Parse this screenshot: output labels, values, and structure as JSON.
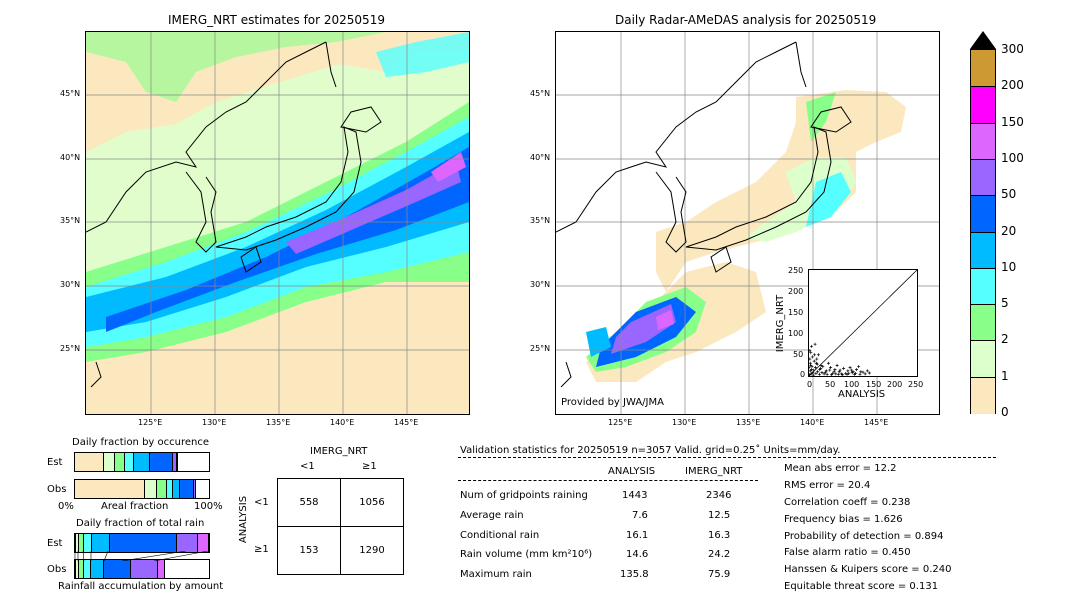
{
  "left_map": {
    "title": "IMERG_NRT estimates for 20250519",
    "lat_labels": [
      "45°N",
      "40°N",
      "35°N",
      "30°N",
      "25°N"
    ],
    "lon_labels": [
      "125°E",
      "130°E",
      "135°E",
      "140°E",
      "145°E"
    ]
  },
  "right_map": {
    "title": "Daily Radar-AMeDAS analysis for 20250519",
    "lat_labels": [
      "45°N",
      "40°N",
      "35°N",
      "30°N",
      "25°N"
    ],
    "lon_labels": [
      "125°E",
      "130°E",
      "135°E",
      "140°E",
      "145°E"
    ],
    "credit": "Provided by JWA/JMA"
  },
  "colorbar": {
    "labels": [
      "300",
      "200",
      "150",
      "100",
      "50",
      "20",
      "10",
      "5",
      "2",
      "1",
      "0"
    ],
    "colors": [
      "#cc9933",
      "#ff00ff",
      "#dd66ff",
      "#9966ff",
      "#0066ff",
      "#00bbff",
      "#55ffff",
      "#88ff88",
      "#ddffcc",
      "#fbe8bf"
    ]
  },
  "chart_data": [
    {
      "type": "scatter",
      "xlabel": "ANALYSIS",
      "ylabel": "IMERG_NRT",
      "xlim": [
        0,
        250
      ],
      "ylim": [
        0,
        250
      ],
      "xticks": [
        "0",
        "50",
        "100",
        "150",
        "200",
        "250"
      ],
      "yticks": [
        "0",
        "50",
        "100",
        "150",
        "200",
        "250"
      ],
      "points": [
        [
          5,
          5
        ],
        [
          10,
          2
        ],
        [
          15,
          20
        ],
        [
          20,
          10
        ],
        [
          3,
          30
        ],
        [
          8,
          45
        ],
        [
          2,
          60
        ],
        [
          12,
          35
        ],
        [
          25,
          15
        ],
        [
          30,
          8
        ],
        [
          40,
          12
        ],
        [
          50,
          20
        ],
        [
          60,
          15
        ],
        [
          70,
          10
        ],
        [
          80,
          18
        ],
        [
          90,
          12
        ],
        [
          100,
          8
        ],
        [
          110,
          15
        ],
        [
          120,
          10
        ],
        [
          130,
          5
        ],
        [
          135,
          12
        ],
        [
          6,
          70
        ],
        [
          4,
          55
        ],
        [
          18,
          40
        ],
        [
          28,
          25
        ],
        [
          35,
          5
        ],
        [
          45,
          30
        ],
        [
          55,
          6
        ],
        [
          65,
          25
        ],
        [
          75,
          5
        ],
        [
          85,
          6
        ],
        [
          95,
          20
        ],
        [
          105,
          4
        ],
        [
          115,
          22
        ],
        [
          14,
          75
        ],
        [
          22,
          50
        ],
        [
          1,
          3
        ],
        [
          3,
          12
        ],
        [
          7,
          22
        ],
        [
          9,
          8
        ],
        [
          11,
          14
        ],
        [
          16,
          6
        ],
        [
          19,
          28
        ],
        [
          24,
          4
        ],
        [
          27,
          18
        ],
        [
          32,
          22
        ],
        [
          38,
          9
        ],
        [
          42,
          4
        ],
        [
          48,
          14
        ],
        [
          52,
          3
        ],
        [
          58,
          10
        ],
        [
          62,
          5
        ],
        [
          68,
          4
        ],
        [
          72,
          14
        ],
        [
          78,
          3
        ],
        [
          88,
          4
        ],
        [
          92,
          6
        ],
        [
          98,
          14
        ],
        [
          102,
          10
        ],
        [
          108,
          6
        ],
        [
          118,
          4
        ],
        [
          125,
          9
        ],
        [
          140,
          7
        ],
        [
          0,
          20
        ],
        [
          2,
          40
        ],
        [
          4,
          25
        ],
        [
          6,
          15
        ],
        [
          13,
          50
        ],
        [
          17,
          30
        ]
      ]
    },
    {
      "type": "bar",
      "title": "Daily fraction by occurence",
      "series": [
        {
          "name": "Est",
          "values": [
            0.22,
            0.08,
            0.07,
            0.07,
            0.12,
            0.17,
            0.03,
            0.01
          ],
          "colors": [
            "#fbe8bf",
            "#ddffcc",
            "#88ff88",
            "#55ffff",
            "#00bbff",
            "#0066ff",
            "#9966ff",
            "#dd66ff"
          ]
        },
        {
          "name": "Obs",
          "values": [
            0.52,
            0.09,
            0.08,
            0.04,
            0.05,
            0.11,
            0.01
          ],
          "colors": [
            "#fbe8bf",
            "#ddffcc",
            "#88ff88",
            "#55ffff",
            "#00bbff",
            "#0066ff",
            "#9966ff"
          ]
        }
      ],
      "xlabel": "Areal fraction",
      "x_left": "0%",
      "x_right": "100%"
    },
    {
      "type": "bar",
      "title": "Daily fraction of total rain",
      "series": [
        {
          "name": "Est",
          "values": [
            0.01,
            0.02,
            0.04,
            0.06,
            0.13,
            0.5,
            0.16,
            0.08
          ],
          "colors": [
            "#fbe8bf",
            "#ddffcc",
            "#88ff88",
            "#55ffff",
            "#00bbff",
            "#0066ff",
            "#9966ff",
            "#dd66ff"
          ]
        },
        {
          "name": "Obs",
          "values": [
            0.01,
            0.02,
            0.04,
            0.05,
            0.1,
            0.2,
            0.2,
            0.05
          ],
          "colors": [
            "#fbe8bf",
            "#ddffcc",
            "#88ff88",
            "#55ffff",
            "#00bbff",
            "#0066ff",
            "#9966ff",
            "#dd66ff"
          ]
        }
      ],
      "xlabel": "Rainfall accumulation by amount"
    },
    {
      "type": "table",
      "title": "IMERG_NRT",
      "ylabel": "ANALYSIS",
      "col_headers": [
        "<1",
        "≥1"
      ],
      "row_headers": [
        "<1",
        "≥1"
      ],
      "cells": [
        [
          "558",
          "1056"
        ],
        [
          "153",
          "1290"
        ]
      ]
    }
  ],
  "validation": {
    "header": "Validation statistics for 20250519  n=3057 Valid. grid=0.25˚ Units=mm/day.",
    "col_analysis": "ANALYSIS",
    "col_imerg": "IMERG_NRT",
    "rows": [
      {
        "label": "Num of gridpoints raining",
        "analysis": "1443",
        "imerg": "2346"
      },
      {
        "label": "Average rain",
        "analysis": "7.6",
        "imerg": "12.5"
      },
      {
        "label": "Conditional rain",
        "analysis": "16.1",
        "imerg": "16.3"
      },
      {
        "label": "Rain volume (mm km²10⁶)",
        "analysis": "14.6",
        "imerg": "24.2"
      },
      {
        "label": "Maximum rain",
        "analysis": "135.8",
        "imerg": "75.9"
      }
    ],
    "scores": [
      "Mean abs error =   12.2",
      "RMS error =   20.4",
      "Correlation coeff =  0.238",
      "Frequency bias =  1.626",
      "Probability of detection =  0.894",
      "False alarm ratio =  0.450",
      "Hanssen & Kuipers score =  0.240",
      "Equitable threat score =  0.131"
    ]
  }
}
